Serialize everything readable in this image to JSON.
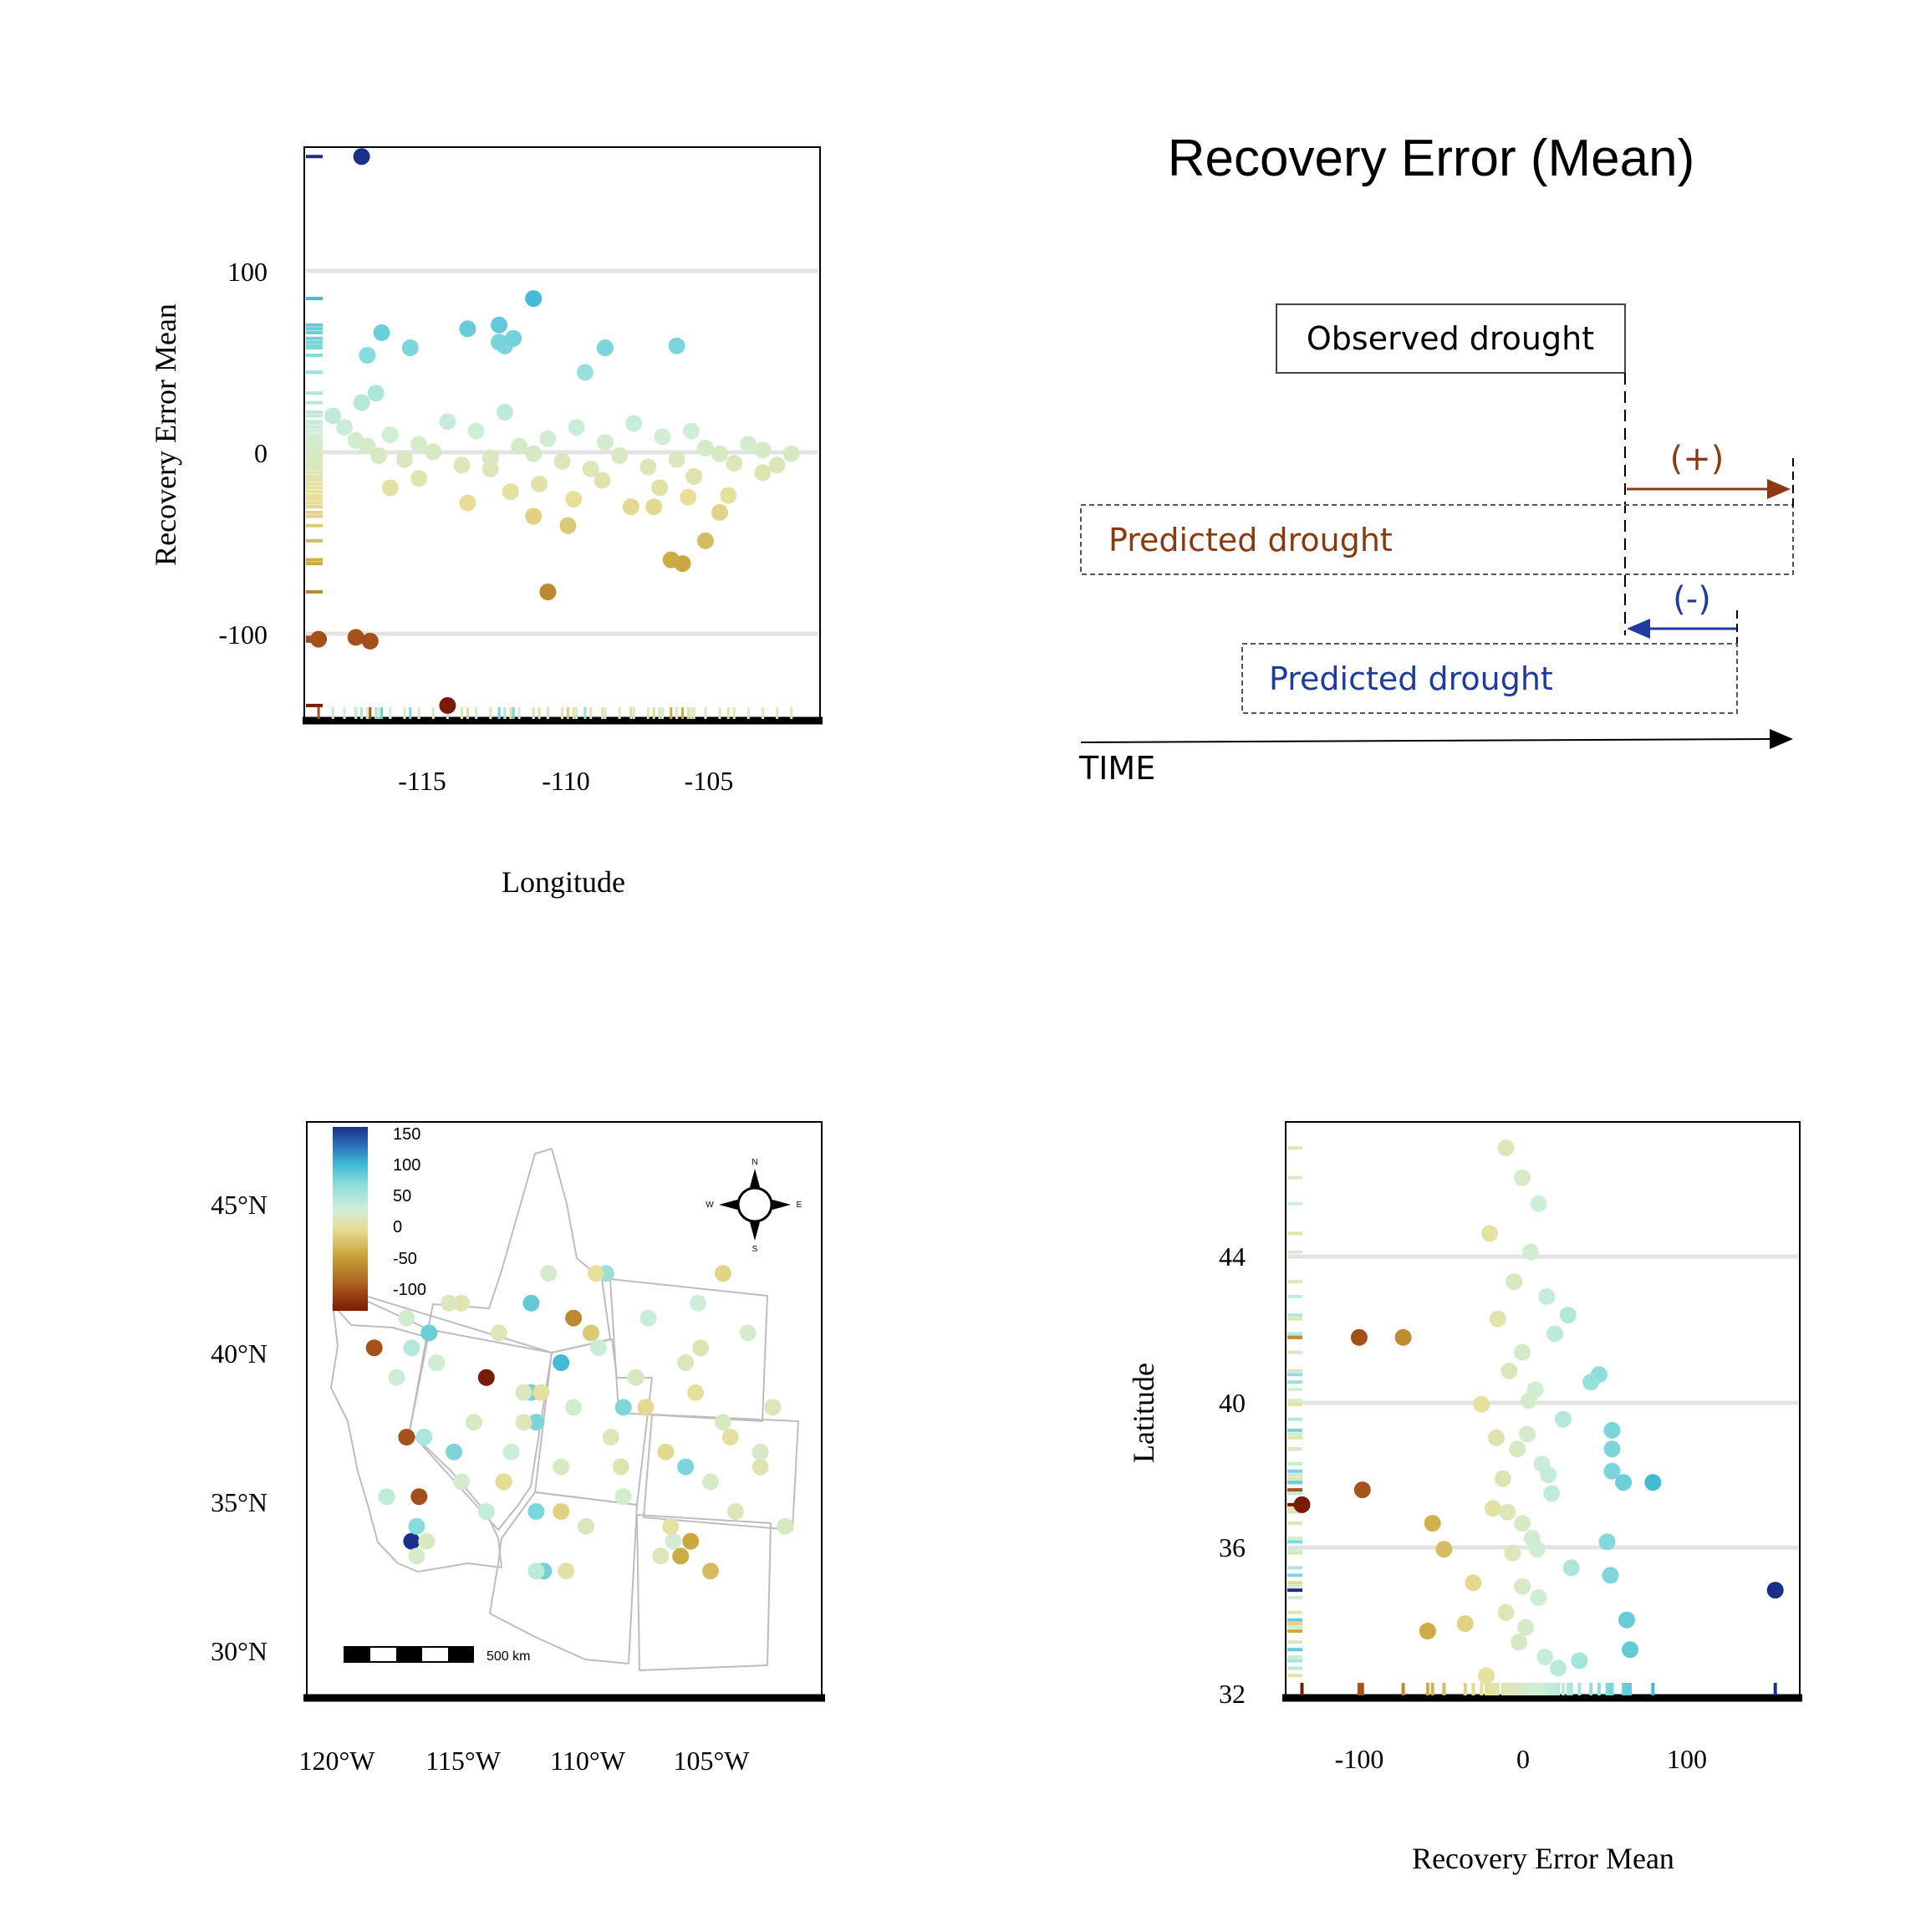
{
  "figure_title": "Recovery Error (Mean)",
  "colors": {
    "scale": [
      "#7a1a08",
      "#a5521a",
      "#c9a53a",
      "#e7df9a",
      "#cfeed8",
      "#8fdfdc",
      "#3fb7d3",
      "#2a6fb8",
      "#1a2f8a"
    ],
    "plus_arrow": "#8b3a0f",
    "minus_arrow": "#1f3aa0",
    "gridline": "#e3e3e3",
    "state_border": "#bdbdbd"
  },
  "scatter_lon": {
    "ylabel": "Recovery Error Mean",
    "xlabel": "Longitude",
    "yticks": [
      "100",
      "0",
      "-100"
    ],
    "xticks": [
      "-115",
      "-110",
      "-105"
    ]
  },
  "schematic": {
    "observed_label": "Observed drought",
    "plus_label": "(+)",
    "predicted_late_label": "Predicted drought",
    "minus_label": "(-)",
    "predicted_early_label": "Predicted drought",
    "time_label": "TIME"
  },
  "map_panel": {
    "legend_ticks": [
      "150",
      "100",
      "50",
      "0",
      "-50",
      "-100"
    ],
    "scale_label": "500 km",
    "compass": {
      "n": "N",
      "s": "S",
      "e": "E",
      "w": "W"
    },
    "yticks": [
      "45°N",
      "40°N",
      "35°N",
      "30°N"
    ],
    "xticks": [
      "120°W",
      "115°W",
      "110°W",
      "105°W"
    ]
  },
  "scatter_lat": {
    "ylabel": "Latitude",
    "xlabel": "Recovery Error Mean",
    "yticks": [
      "44",
      "40",
      "36",
      "32"
    ],
    "xticks": [
      "-100",
      "0",
      "100"
    ]
  },
  "chart_data": [
    {
      "type": "scatter",
      "title": "",
      "xlabel": "Longitude",
      "ylabel": "Recovery Error Mean",
      "xlim": [
        -119,
        -101
      ],
      "ylim": [
        -143,
        160
      ],
      "grid": "horizontal",
      "colorscale": "error-mean",
      "series": [
        {
          "x": [
            -117.0,
            -111.0,
            -112.2,
            -113.3,
            -112.0,
            -112.0,
            -116.3,
            -115.3,
            -112.2,
            -111.7,
            -109.2,
            -106.0,
            -108.5,
            -116.8,
            -118.5,
            -117.2,
            -116.7,
            -114.0,
            -110.5,
            -106.2,
            -105.8,
            -116.0,
            -115.0,
            -113.3,
            -112.5,
            -111.0,
            -109.8,
            -106.8,
            -105.6,
            -105.0,
            -104.5,
            -103.0,
            -102.5,
            -102.0,
            -117.0,
            -116.5
          ],
          "y": [
            155,
            80,
            66,
            64,
            55,
            55,
            62,
            54,
            57,
            59,
            41,
            55,
            54,
            50,
            -100,
            -99,
            -101,
            -135,
            -75,
            -58,
            -60,
            -20,
            -15,
            -28,
            -10,
            -35,
            -40,
            -30,
            -25,
            -48,
            -33,
            -12,
            -8,
            -2,
            25,
            30
          ],
          "name": ""
        },
        {
          "x": [
            -118.0,
            -117.6,
            -117.2,
            -116.8,
            -116.4,
            -116.0,
            -115.5,
            -115.0,
            -114.5,
            -114.0,
            -113.5,
            -113.0,
            -112.5,
            -112.0,
            -111.5,
            -111.0,
            -110.5,
            -110.0,
            -109.5,
            -109.0,
            -108.5,
            -108.0,
            -107.5,
            -107.0,
            -106.5,
            -106.0,
            -105.5,
            -105.0,
            -104.5,
            -104.0,
            -103.5,
            -103.0,
            -111.8,
            -110.8,
            -109.6,
            -108.6,
            -107.6,
            -106.6,
            -105.4,
            -104.2
          ],
          "y": [
            18,
            12,
            5,
            2,
            -3,
            8,
            -5,
            3,
            -1,
            15,
            -8,
            10,
            -4,
            20,
            2,
            -2,
            6,
            -6,
            12,
            -10,
            4,
            -3,
            14,
            -9,
            7,
            -5,
            10,
            1,
            -2,
            -7,
            3,
            0,
            -22,
            -18,
            -26,
            -16,
            -30,
            -20,
            -14,
            -24
          ],
          "name": ""
        }
      ]
    },
    {
      "type": "map",
      "title": "",
      "colorbar_ticks": [
        150,
        100,
        50,
        0,
        -50,
        -100
      ],
      "lat_ticks": [
        "45°N",
        "40°N",
        "35°N",
        "30°N"
      ],
      "lon_ticks": [
        "120°W",
        "115°W",
        "110°W",
        "105°W"
      ],
      "scale_bar": "500 km"
    },
    {
      "type": "scatter",
      "title": "",
      "xlabel": "Recovery Error Mean",
      "ylabel": "Latitude",
      "xlim": [
        -145,
        170
      ],
      "ylim": [
        32,
        47.5
      ],
      "grid": "horizontal",
      "series": [
        {
          "x": [
            155,
            -135,
            -100,
            -73,
            -98,
            -58,
            -48,
            -55,
            80,
            62,
            55,
            55,
            52,
            54,
            55,
            64,
            66,
            47,
            42,
            28
          ],
          "y": [
            34.9,
            37.2,
            41.7,
            41.7,
            37.6,
            33.8,
            36.0,
            36.7,
            37.8,
            37.8,
            38.1,
            39.2,
            36.2,
            35.3,
            38.7,
            34.1,
            33.3,
            40.7,
            40.5,
            42.3
          ],
          "name": ""
        },
        {
          "x": [
            -10,
            0,
            10,
            -20,
            5,
            -5,
            15,
            -15,
            20,
            0,
            -8,
            8,
            -25,
            25,
            3,
            -3,
            12,
            -12,
            18,
            -18,
            0,
            6,
            -6,
            30,
            -30,
            10,
            -10,
            2,
            -2,
            14,
            22,
            -22,
            35,
            -35,
            0,
            9,
            -9,
            16,
            -16,
            4
          ],
          "y": [
            46.8,
            46.0,
            45.3,
            44.5,
            44.0,
            43.2,
            42.8,
            42.2,
            41.8,
            41.3,
            40.8,
            40.3,
            39.9,
            39.5,
            39.1,
            38.7,
            38.3,
            37.9,
            37.5,
            37.1,
            36.7,
            36.3,
            35.9,
            35.5,
            35.1,
            34.7,
            34.3,
            33.9,
            33.5,
            33.1,
            32.8,
            32.6,
            33.0,
            34.0,
            35.0,
            36.0,
            37.0,
            38.0,
            39.0,
            40.0
          ],
          "name": ""
        }
      ]
    }
  ]
}
